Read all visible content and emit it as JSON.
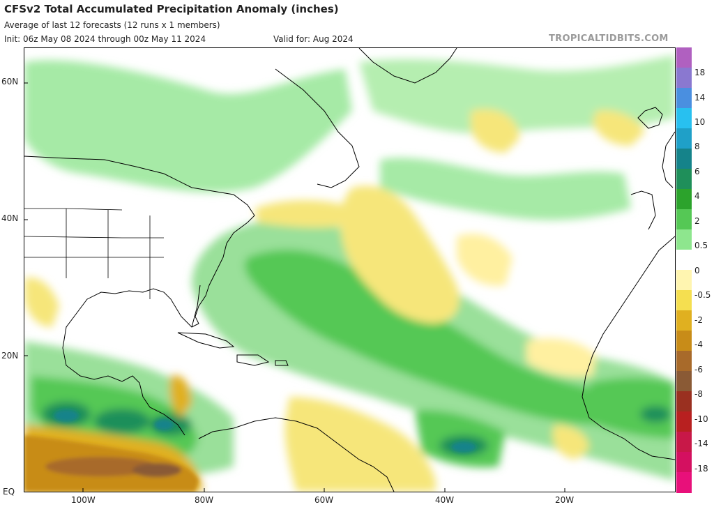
{
  "header": {
    "title": "CFSv2 Total Accumulated Precipitation Anomaly (inches)",
    "subtitle": "Average of last 12 forecasts (12 runs x 1 members)",
    "init": "Init: 06z May 08 2024 through 00z May 11 2024",
    "valid": "Valid for: Aug 2024",
    "brand": "TROPICALTIDBITS.COM"
  },
  "axes": {
    "lat_labels": [
      "60N",
      "40N",
      "20N",
      "EQ"
    ],
    "lon_labels": [
      "100W",
      "80W",
      "60W",
      "40W",
      "20W"
    ]
  },
  "colorbar": {
    "labels": [
      "18",
      "14",
      "10",
      "8",
      "6",
      "4",
      "2",
      "0.5",
      "0",
      "-0.5",
      "-2",
      "-4",
      "-6",
      "-8",
      "-10",
      "-14",
      "-18"
    ],
    "colors": [
      "#b060c0",
      "#8a78d0",
      "#4a8fe0",
      "#28c0f0",
      "#1fa0c8",
      "#15838a",
      "#1f8f5a",
      "#2ca32c",
      "#55c855",
      "#8ee68e",
      "#ffffff",
      "#fff5b0",
      "#f5df50",
      "#e0b020",
      "#c88c18",
      "#a86a2a",
      "#8a5a35",
      "#9a3020",
      "#b82020",
      "#c81848",
      "#d41060",
      "#e8107a"
    ]
  }
}
